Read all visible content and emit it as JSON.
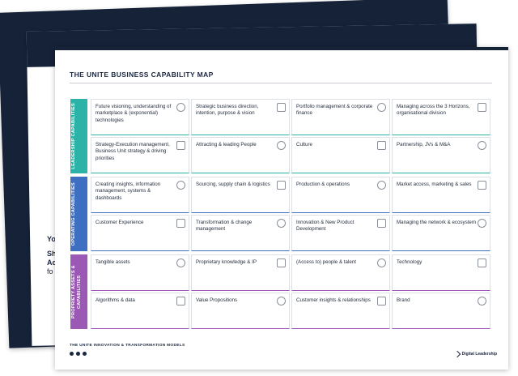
{
  "map": {
    "title": "THE UNITE BUSINESS CAPABILITY MAP",
    "colors": {
      "leadership": "#2ab3a6",
      "operating": "#3f6fc0",
      "proprietary": "#9b58b4"
    },
    "bands": [
      {
        "label": "LEADERSHIP CAPABILITIES",
        "color": "#2ab3a6"
      },
      {
        "label": "OPERATING CAPABILITIES",
        "color": "#3f6fc0"
      },
      {
        "label": "PROPRIETY ASSETS & CAPABILITIES",
        "color": "#9b58b4"
      }
    ],
    "rows": [
      [
        {
          "label": "Future visioning, understanding of marketplace & (exponential) technologies",
          "icon": "target-icon"
        },
        {
          "label": "Strategic business direction, intention, purpose & vision",
          "icon": "chart-icon"
        },
        {
          "label": "Portfolio management & corporate finance",
          "icon": "bank-icon"
        },
        {
          "label": "Managing across the 3 Horizons, organisational division",
          "icon": "building-icon"
        }
      ],
      [
        {
          "label": "Strategy-Execution management, Business Unit strategy & driving priorities",
          "icon": "gear-icon"
        },
        {
          "label": "Attracting & leading People",
          "icon": "people-icon"
        },
        {
          "label": "Culture",
          "icon": "hands-icon"
        },
        {
          "label": "Partnership, JVs & M&A",
          "icon": "handshake-icon"
        }
      ],
      [
        {
          "label": "Creating insights, information management, systems & dashboards",
          "icon": "dashboard-icon"
        },
        {
          "label": "Sourcing, supply chain & logistics",
          "icon": "factory-icon"
        },
        {
          "label": "Production & operations",
          "icon": "worker-icon"
        },
        {
          "label": "Market access, marketing & sales",
          "icon": "megaphone-icon"
        }
      ],
      [
        {
          "label": "Customer Experience",
          "icon": "flag-icon"
        },
        {
          "label": "Transformation & change management",
          "icon": "transform-icon"
        },
        {
          "label": "Innovation & New Product Development",
          "icon": "lightbulb-icon"
        },
        {
          "label": "Managing the network & ecosystem",
          "icon": "network-icon"
        }
      ],
      [
        {
          "label": "Tangible assets",
          "icon": "coins-icon"
        },
        {
          "label": "Proprietary knowledge & IP",
          "icon": "brain-icon"
        },
        {
          "label": "(Access to) people & talent",
          "icon": "star-icon"
        },
        {
          "label": "Technology",
          "icon": "robot-icon"
        }
      ],
      [
        {
          "label": "Algorithms & data",
          "icon": "sparkle-icon"
        },
        {
          "label": "Value Propositions",
          "icon": "gift-icon"
        },
        {
          "label": "Customer insights & relationships",
          "icon": "user-icon"
        },
        {
          "label": "Brand",
          "icon": "bookmark-icon"
        }
      ]
    ]
  },
  "footer": {
    "title": "THE UNITE INNOVATION & TRANSFORMATION MODELS",
    "brand": "Digital Leadership"
  },
  "background_sheet": {
    "line1": "Yo",
    "line2": "Sh",
    "line3": "Ac",
    "line4": "fo"
  }
}
